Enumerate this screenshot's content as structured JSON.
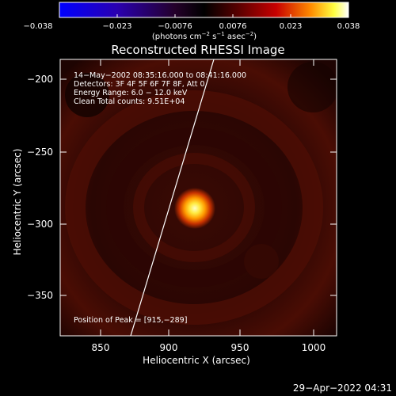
{
  "colorbar": {
    "ticks": [
      "−0.038",
      "−0.023",
      "−0.0076",
      "0.0076",
      "0.023",
      "0.038"
    ],
    "unit_base": "(photons cm",
    "unit_sup1": "−2",
    "unit_mid1": " s",
    "unit_sup2": "−1",
    "unit_mid2": " asec",
    "unit_sup3": "−2",
    "unit_end": ")"
  },
  "plot": {
    "title": "Reconstructed RHESSI Image",
    "info_lines": [
      "14−May−2002 08:35:16.000 to 08:41:16.000",
      "Detectors: 3F 4F 5F 6F 7F 8F, Att 0",
      "Energy Range: 6.0 − 12.0 keV",
      "Clean     Total counts: 9.51E+04"
    ],
    "peak_text": "Position of Peak = [915,−289]",
    "xlabel": "Heliocentric X (arcsec)",
    "ylabel": "Heliocentric Y (arcsec)",
    "xticks": [
      "850",
      "900",
      "950",
      "1000"
    ],
    "yticks": [
      "−200",
      "−250",
      "−300",
      "−350"
    ]
  },
  "timestamp": "29−Apr−2022 04:31",
  "chart_data": {
    "type": "heatmap",
    "title": "Reconstructed RHESSI Image",
    "xlabel": "Heliocentric X (arcsec)",
    "ylabel": "Heliocentric Y (arcsec)",
    "xlim": [
      820,
      1015
    ],
    "ylim": [
      -375,
      -190
    ],
    "color_range": [
      -0.038,
      0.038
    ],
    "colormap": "blue-black-red-yellow-white",
    "peak": {
      "x": 915,
      "y": -289
    },
    "limb_line": [
      [
        870,
        -375
      ],
      [
        927,
        -190
      ]
    ]
  },
  "colors": {
    "background": "#000000",
    "foreground": "#ffffff",
    "source_core": "#ffffc8",
    "source_mid": "#ffd200",
    "source_outer": "#c83200",
    "halo": "#4a0d04"
  }
}
